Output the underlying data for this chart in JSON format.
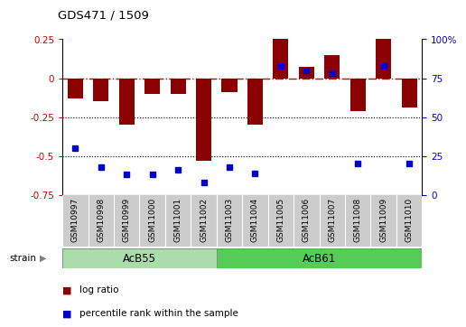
{
  "title": "GDS471 / 1509",
  "samples": [
    "GSM10997",
    "GSM10998",
    "GSM10999",
    "GSM11000",
    "GSM11001",
    "GSM11002",
    "GSM11003",
    "GSM11004",
    "GSM11005",
    "GSM11006",
    "GSM11007",
    "GSM11008",
    "GSM11009",
    "GSM11010"
  ],
  "log_ratio": [
    -0.13,
    -0.15,
    -0.3,
    -0.1,
    -0.1,
    -0.53,
    -0.09,
    -0.3,
    0.25,
    0.07,
    0.15,
    -0.21,
    0.25,
    -0.19
  ],
  "percentile": [
    30,
    18,
    13,
    13,
    16,
    8,
    18,
    14,
    83,
    80,
    78,
    20,
    83,
    20
  ],
  "bar_color": "#8b0000",
  "dot_color": "#0000cd",
  "zero_line_color": "#cc0000",
  "dotted_line_color": "#000000",
  "ylim": [
    -0.75,
    0.25
  ],
  "yticks_left": [
    -0.75,
    -0.5,
    -0.25,
    0.0,
    0.25
  ],
  "ytick_labels_left": [
    "-0.75",
    "-0.5",
    "-0.25",
    "0",
    "0.25"
  ],
  "yticks_right_pct": [
    0,
    25,
    50,
    75,
    100
  ],
  "group1_label": "AcB55",
  "group1_count": 6,
  "group2_label": "AcB61",
  "group2_count": 8,
  "strain_label": "strain",
  "legend_log_ratio": "log ratio",
  "legend_percentile": "percentile rank within the sample",
  "bg_color": "#ffffff",
  "plot_bg": "#ffffff",
  "xlabel_bg": "#cccccc",
  "group_color1": "#aaddaa",
  "group_color2": "#55cc55",
  "tick_label_color_left": "#cc0000",
  "tick_label_color_right": "#0000cd"
}
